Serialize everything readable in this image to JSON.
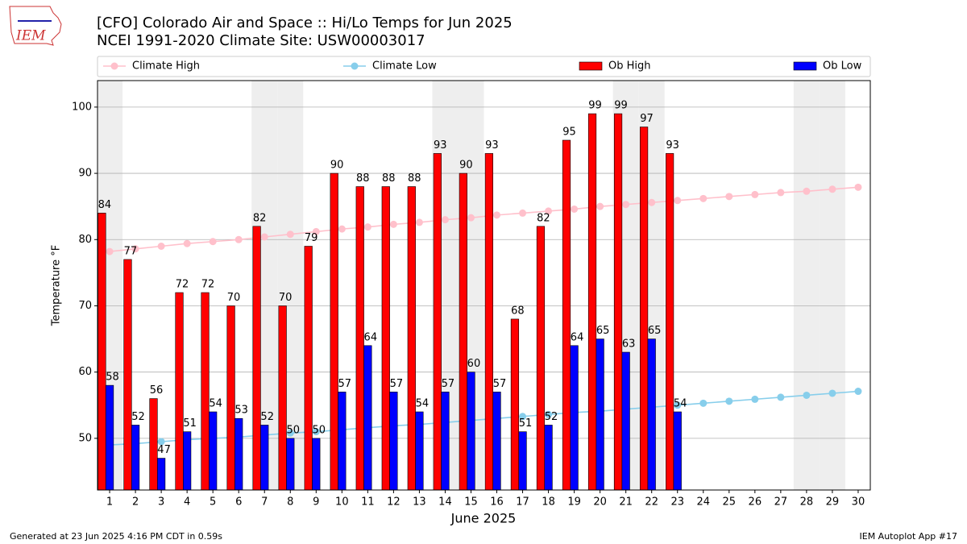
{
  "logo_text": "IEM",
  "footer_left": "Generated at 23 Jun 2025 4:16 PM CDT in 0.59s",
  "footer_right": "IEM Autoplot App #17",
  "chart_data": {
    "type": "bar",
    "title": "[CFO] Colorado Air and Space :: Hi/Lo Temps for Jun 2025",
    "subtitle": "NCEI 1991-2020 Climate Site: USW00003017",
    "x_label": "June 2025",
    "y_label": "Temperature °F",
    "x": [
      1,
      2,
      3,
      4,
      5,
      6,
      7,
      8,
      9,
      10,
      11,
      12,
      13,
      14,
      15,
      16,
      17,
      18,
      19,
      20,
      21,
      22,
      23,
      24,
      25,
      26,
      27,
      28,
      29,
      30
    ],
    "xlim": [
      0.53,
      30.47
    ],
    "xticks": [
      1,
      2,
      3,
      4,
      5,
      6,
      7,
      8,
      9,
      10,
      11,
      12,
      13,
      14,
      15,
      16,
      17,
      18,
      19,
      20,
      21,
      22,
      23,
      24,
      25,
      26,
      27,
      28,
      29,
      30
    ],
    "ylim": [
      42.2,
      104
    ],
    "yticks": [
      50,
      60,
      70,
      80,
      90,
      100
    ],
    "grid": true,
    "shaded_days": [
      1,
      7,
      8,
      14,
      15,
      21,
      22,
      28,
      29
    ],
    "shade_color": "#eeeeee",
    "series": [
      {
        "name": "Climate High",
        "kind": "line",
        "color": "#ffc0cb",
        "values": [
          78.2,
          78.6,
          79.0,
          79.4,
          79.7,
          80.0,
          80.4,
          80.8,
          81.2,
          81.6,
          81.9,
          82.3,
          82.6,
          83.0,
          83.3,
          83.7,
          84.0,
          84.3,
          84.6,
          85.0,
          85.3,
          85.6,
          85.9,
          86.2,
          86.5,
          86.8,
          87.1,
          87.3,
          87.6,
          87.9
        ]
      },
      {
        "name": "Climate Low",
        "kind": "line",
        "color": "#87ceeb",
        "values": [
          49.0,
          49.2,
          49.5,
          49.8,
          50.0,
          50.2,
          50.5,
          50.8,
          51.0,
          51.3,
          51.6,
          51.9,
          52.1,
          52.4,
          52.7,
          53.0,
          53.3,
          53.6,
          53.9,
          54.1,
          54.4,
          54.7,
          55.0,
          55.3,
          55.6,
          55.9,
          56.2,
          56.5,
          56.8,
          57.1
        ]
      },
      {
        "name": "Ob High",
        "kind": "bar",
        "color": "#ff0000",
        "values": [
          84,
          77,
          56,
          72,
          72,
          70,
          82,
          70,
          79,
          90,
          88,
          88,
          88,
          93,
          90,
          93,
          68,
          82,
          95,
          99,
          99,
          97,
          93,
          null,
          null,
          null,
          null,
          null,
          null,
          null
        ]
      },
      {
        "name": "Ob Low",
        "kind": "bar",
        "color": "#0000ff",
        "values": [
          58,
          52,
          47,
          51,
          54,
          53,
          52,
          50,
          50,
          57,
          64,
          57,
          54,
          57,
          60,
          57,
          51,
          52,
          64,
          65,
          63,
          65,
          54,
          null,
          null,
          null,
          null,
          null,
          null,
          null
        ]
      }
    ]
  }
}
